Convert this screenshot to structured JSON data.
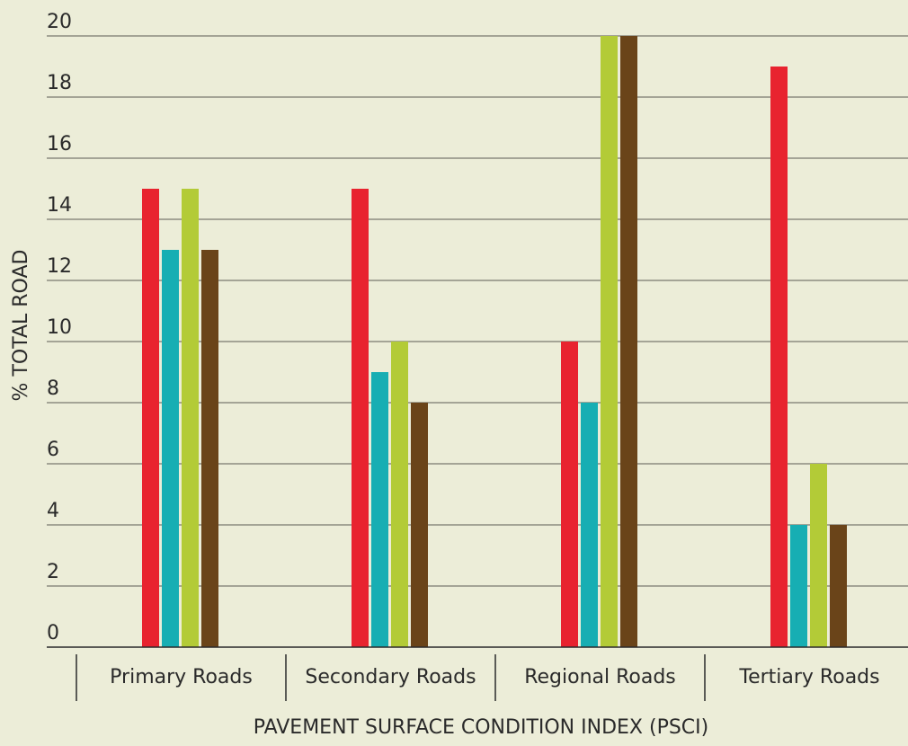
{
  "chart_data": {
    "type": "bar",
    "title": "",
    "xlabel": "PAVEMENT SURFACE CONDITION INDEX (PSCI)",
    "ylabel": "% TOTAL ROAD",
    "ylim": [
      0,
      20
    ],
    "yticks": [
      0,
      2,
      4,
      6,
      8,
      10,
      12,
      14,
      16,
      18,
      20
    ],
    "categories": [
      "Primary Roads",
      "Secondary Roads",
      "Regional Roads",
      "Tertiary Roads"
    ],
    "grid": true,
    "legend": "none",
    "series": [
      {
        "color": "#e8232f",
        "values": [
          15,
          15,
          10,
          19
        ]
      },
      {
        "color": "#17aeb3",
        "values": [
          13,
          9,
          8,
          4
        ]
      },
      {
        "color": "#b3cb37",
        "values": [
          15,
          10,
          20,
          6
        ]
      },
      {
        "color": "#6a4419",
        "values": [
          13,
          8,
          20,
          4
        ]
      }
    ]
  },
  "colors": {
    "background": "#ecedd8",
    "gridline": "#7a7a6e",
    "axis": "#2a2a2a"
  }
}
